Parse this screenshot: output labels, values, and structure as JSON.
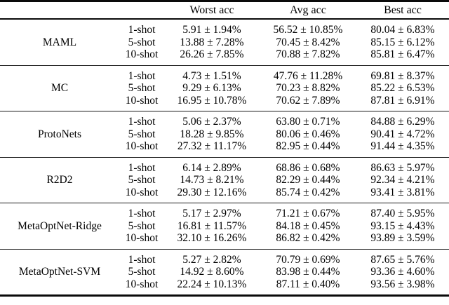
{
  "table": {
    "header": {
      "worst": "Worst acc",
      "avg": "Avg acc",
      "best": "Best acc"
    },
    "groups": [
      {
        "method": "MAML",
        "rows": [
          {
            "shot": "1-shot",
            "worst": "5.91 ± 1.94%",
            "avg": "56.52 ± 10.85%",
            "best": "80.04 ± 6.83%"
          },
          {
            "shot": "5-shot",
            "worst": "13.88 ± 7.28%",
            "avg": "70.45 ± 8.42%",
            "best": "85.15 ± 6.12%"
          },
          {
            "shot": "10-shot",
            "worst": "26.26 ± 7.85%",
            "avg": "70.88 ± 7.82%",
            "best": "85.81 ± 6.47%"
          }
        ]
      },
      {
        "method": "MC",
        "rows": [
          {
            "shot": "1-shot",
            "worst": "4.73 ± 1.51%",
            "avg": "47.76 ± 11.28%",
            "best": "69.81 ± 8.37%"
          },
          {
            "shot": "5-shot",
            "worst": "9.29 ± 6.13%",
            "avg": "70.23 ± 8.82%",
            "best": "85.22 ± 6.53%"
          },
          {
            "shot": "10-shot",
            "worst": "16.95 ± 10.78%",
            "avg": "70.62 ± 7.89%",
            "best": "87.81 ± 6.91%"
          }
        ]
      },
      {
        "method": "ProtoNets",
        "rows": [
          {
            "shot": "1-shot",
            "worst": "5.06 ± 2.37%",
            "avg": "63.80 ± 0.71%",
            "best": "84.88 ± 6.29%"
          },
          {
            "shot": "5-shot",
            "worst": "18.28 ± 9.85%",
            "avg": "80.06 ± 0.46%",
            "best": "90.41 ± 4.72%"
          },
          {
            "shot": "10-shot",
            "worst": "27.32 ± 11.17%",
            "avg": "82.95 ± 0.44%",
            "best": "91.44 ± 4.35%"
          }
        ]
      },
      {
        "method": "R2D2",
        "rows": [
          {
            "shot": "1-shot",
            "worst": "6.14 ± 2.89%",
            "avg": "68.86 ± 0.68%",
            "best": "86.63 ± 5.97%"
          },
          {
            "shot": "5-shot",
            "worst": "14.73 ± 8.21%",
            "avg": "82.29 ± 0.44%",
            "best": "92.34 ± 4.21%"
          },
          {
            "shot": "10-shot",
            "worst": "29.30 ± 12.16%",
            "avg": "85.74 ± 0.42%",
            "best": "93.41 ± 3.81%"
          }
        ]
      },
      {
        "method": "MetaOptNet-Ridge",
        "rows": [
          {
            "shot": "1-shot",
            "worst": "5.17 ± 2.97%",
            "avg": "71.21 ± 0.67%",
            "best": "87.40 ± 5.95%"
          },
          {
            "shot": "5-shot",
            "worst": "16.81 ± 11.57%",
            "avg": "84.18 ± 0.45%",
            "best": "93.15 ± 4.43%"
          },
          {
            "shot": "10-shot",
            "worst": "32.10 ± 16.26%",
            "avg": "86.82 ± 0.42%",
            "best": "93.89 ± 3.59%"
          }
        ]
      },
      {
        "method": "MetaOptNet-SVM",
        "rows": [
          {
            "shot": "1-shot",
            "worst": "5.27 ± 2.82%",
            "avg": "70.79 ± 0.69%",
            "best": "87.65 ± 5.76%"
          },
          {
            "shot": "5-shot",
            "worst": "14.92 ± 8.60%",
            "avg": "83.98 ± 0.44%",
            "best": "93.36 ± 4.60%"
          },
          {
            "shot": "10-shot",
            "worst": "22.24 ± 10.13%",
            "avg": "87.11 ± 0.40%",
            "best": "93.56 ± 3.98%"
          }
        ]
      }
    ]
  }
}
